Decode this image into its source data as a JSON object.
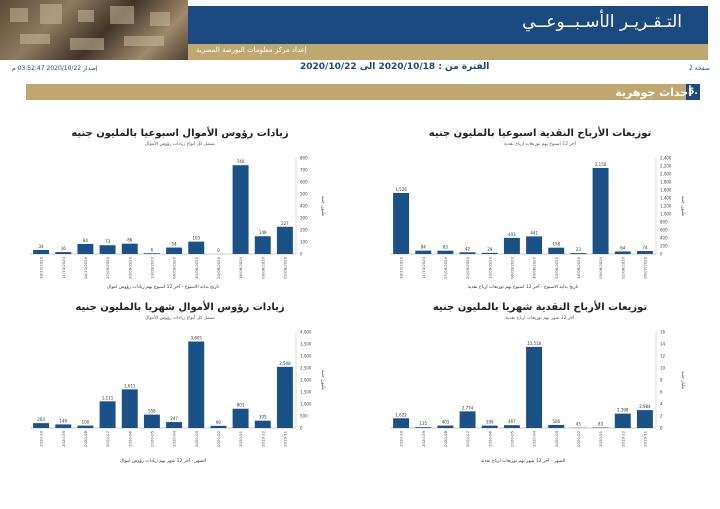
{
  "header": {
    "title": "التـقـريـر الأسـبــوعــي",
    "center_name": "إعداد مركز معلومات البورصة المصرية"
  },
  "meta": {
    "page": "صفحة 2",
    "period": "الفترة من : 2020/10/18 الى 2020/10/22",
    "issue": "إصدار 2020/10/22 03:52:47 م"
  },
  "section": {
    "number": "5.",
    "title": "أحداث جوهرية"
  },
  "colors": {
    "bar": "#1a5288",
    "header_blue": "#1a4a80",
    "gold": "#bfa770"
  },
  "chart_data": [
    {
      "type": "bar",
      "title": "توزيعات الأرباح النقدية اسبوعيا بالمليون جنيه",
      "subtitle": "آخر 12 اسبوع بهم توزيعات ارباح نقدية",
      "xlabel": "تاريخ بداية الاسبوع - آخر 12 اسبوع بهم توزيعات ارباح نقدية",
      "ylabel": "مليون جنيه",
      "ylim": [
        0,
        2400
      ],
      "yticks": [
        0,
        200,
        400,
        600,
        800,
        1000,
        1200,
        1400,
        1600,
        1800,
        2000,
        2200,
        2400
      ],
      "categories": [
        "18/10/2020",
        "11/10/2020",
        "27/09/2020",
        "20/09/2020",
        "13/09/2020",
        "06/09/2020",
        "30/08/2020",
        "23/08/2020",
        "16/08/2020",
        "09/08/2020",
        "02/08/2020",
        "26/07/2020"
      ],
      "values": [
        1526,
        84,
        83,
        42,
        29,
        403,
        441,
        158,
        23,
        2150,
        64,
        74
      ],
      "labels": [
        "1,526",
        "84",
        "83",
        "42",
        "29",
        "403",
        "441",
        "158",
        "23",
        "2,150",
        "64",
        "74"
      ]
    },
    {
      "type": "bar",
      "title": "زيادات رؤوس الأموال اسبوعيا بالمليون جنيه",
      "subtitle": "تشمل كل أنواع زيادات رؤوس الأموال",
      "xlabel": "تاريخ بداية الاسبوع - آخر 12 اسبوع بهم زيادات رؤوس اموال",
      "ylabel": "مليون جنيه",
      "ylim": [
        0,
        800
      ],
      "yticks": [
        0,
        100,
        200,
        300,
        400,
        500,
        600,
        700,
        800
      ],
      "categories": [
        "18/10/2020",
        "11/10/2020",
        "04/10/2020",
        "27/09/2020",
        "20/09/2020",
        "13/09/2020",
        "06/09/2020",
        "30/08/2020",
        "23/08/2020",
        "16/08/2020",
        "09/08/2020",
        "02/08/2020"
      ],
      "values": [
        34,
        16,
        84,
        73,
        86,
        6,
        54,
        103,
        0,
        740,
        148,
        227
      ],
      "labels": [
        "34",
        "16",
        "84",
        "73",
        "86",
        "6",
        "54",
        "103",
        "0",
        "740",
        "148",
        "227"
      ]
    },
    {
      "type": "bar",
      "title": "توزيعات الأرباح النقدية شهريا بالمليون جنيه",
      "subtitle": "آخر 12 شهر بهم توزيعات ارباح نقدية",
      "xlabel": "الشهر - آخر 12 شهر بهم توزيعات ارباح نقدية",
      "ylabel": "مليار جنيه",
      "ylim": [
        0,
        16
      ],
      "yticks": [
        0,
        2,
        4,
        6,
        8,
        10,
        12,
        14,
        16
      ],
      "categories": [
        "2020-10",
        "2020-09",
        "2020-08",
        "2020-07",
        "2020-06",
        "2020-05",
        "2020-04",
        "2020-03",
        "2020-02",
        "2020-01",
        "2019-12",
        "2019-11"
      ],
      "values": [
        1.622,
        0.135,
        0.403,
        2.774,
        0.399,
        0.467,
        13.518,
        0.506,
        0.045,
        0.083,
        2.398,
        2.984
      ],
      "labels": [
        "1,622",
        "135",
        "403",
        "2,774",
        "399",
        "467",
        "13,518",
        "506",
        "45",
        "83",
        "2,398",
        "2,984"
      ]
    },
    {
      "type": "bar",
      "title": "زيادات رؤوس الأموال شهريا بالمليون جنيه",
      "subtitle": "تشمل كل أنواع زيادات رؤوس الأموال",
      "xlabel": "الشهر - آخر 12 شهر بهم زيادات رؤوس اموال",
      "ylabel": "مليون جنيه",
      "ylim": [
        0,
        4000
      ],
      "yticks": [
        0,
        500,
        1000,
        1500,
        2000,
        2500,
        3000,
        3500,
        4000
      ],
      "categories": [
        "2020-10",
        "2020-09",
        "2020-08",
        "2020-07",
        "2020-06",
        "2020-05",
        "2020-04",
        "2020-03",
        "2020-02",
        "2020-01",
        "2019-12",
        "2019-11"
      ],
      "values": [
        203,
        149,
        100,
        1111,
        1611,
        558,
        247,
        3605,
        90,
        803,
        305,
        2548
      ],
      "labels": [
        "203",
        "149",
        "100",
        "1,111",
        "1,611",
        "558",
        "247",
        "3,605",
        "90",
        "803",
        "305",
        "2,548"
      ]
    }
  ]
}
